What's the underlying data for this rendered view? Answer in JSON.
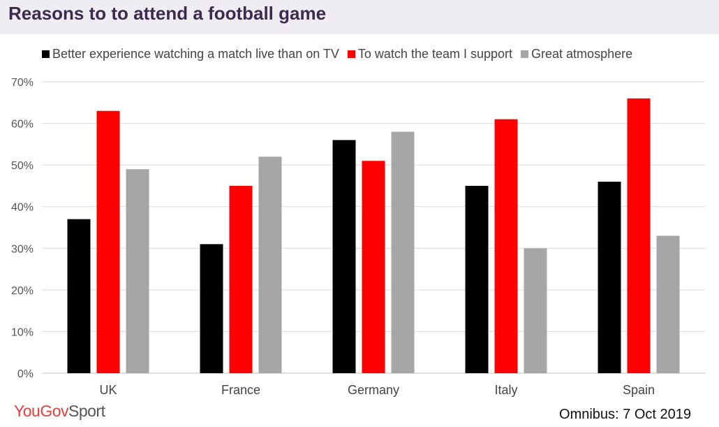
{
  "header": {
    "title": "Reasons to to attend a football game"
  },
  "footer": {
    "logo_main": "YouGov",
    "logo_sub": "Sport",
    "source": "Omnibus: 7 Oct 2019"
  },
  "chart_data": {
    "type": "bar",
    "title": "Reasons to to attend a football game",
    "xlabel": "",
    "ylabel": "",
    "categories": [
      "UK",
      "France",
      "Germany",
      "Italy",
      "Spain"
    ],
    "series": [
      {
        "name": "Better experience watching a match live than on TV",
        "color": "#000000",
        "values": [
          37,
          31,
          56,
          45,
          46
        ]
      },
      {
        "name": "To watch the team I support",
        "color": "#ff0000",
        "values": [
          63,
          45,
          51,
          61,
          66
        ]
      },
      {
        "name": "Great atmosphere",
        "color": "#a6a6a6",
        "values": [
          49,
          52,
          58,
          30,
          33
        ]
      }
    ],
    "ylim": [
      0,
      70
    ],
    "yticks": [
      0,
      10,
      20,
      30,
      40,
      50,
      60,
      70
    ],
    "ytick_labels": [
      "0%",
      "10%",
      "20%",
      "30%",
      "40%",
      "50%",
      "60%",
      "70%"
    ],
    "grid": true,
    "legend_position": "top"
  }
}
